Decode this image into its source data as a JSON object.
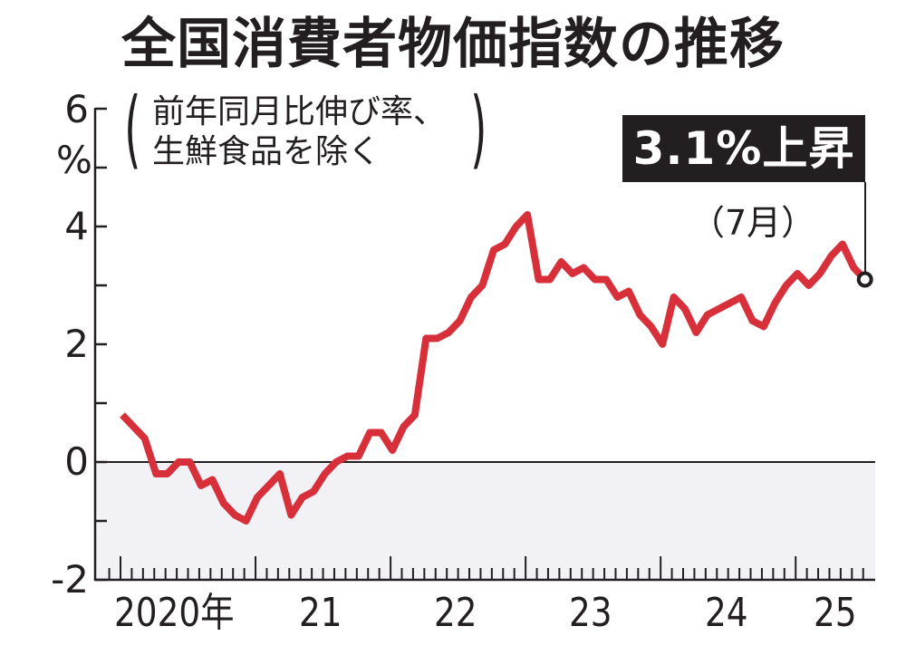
{
  "title": "全国消費者物価指数の推移",
  "subtitle": {
    "line1": "前年同月比伸び率、",
    "line2": "生鮮食品を除く"
  },
  "y_axis": {
    "unit": "%",
    "ticks": [
      "6",
      "4",
      "2",
      "0",
      "-2"
    ]
  },
  "x_axis": {
    "labels": [
      "2020年",
      "21",
      "22",
      "23",
      "24",
      "25"
    ]
  },
  "callout": {
    "value": "3.1%上昇",
    "month": "（7月）"
  },
  "colors": {
    "line": "#d7303a",
    "negative_band": "#f1f1f6",
    "callout_bg": "#231f20",
    "text": "#231f20"
  },
  "chart_data": {
    "type": "line",
    "title": "全国消費者物価指数の推移",
    "subtitle": "前年同月比伸び率、生鮮食品を除く",
    "xlabel": "",
    "ylabel": "%",
    "ylim": [
      -2,
      6
    ],
    "yticks": [
      -2,
      -1,
      0,
      1,
      2,
      3,
      4,
      5,
      6
    ],
    "x_tick_labels": [
      "2020年",
      "21",
      "22",
      "23",
      "24",
      "25"
    ],
    "grid": false,
    "legend": null,
    "annotation": "3.1%上昇（7月）",
    "x": [
      "2020-01",
      "2020-02",
      "2020-03",
      "2020-04",
      "2020-05",
      "2020-06",
      "2020-07",
      "2020-08",
      "2020-09",
      "2020-10",
      "2020-11",
      "2020-12",
      "2021-01",
      "2021-02",
      "2021-03",
      "2021-04",
      "2021-05",
      "2021-06",
      "2021-07",
      "2021-08",
      "2021-09",
      "2021-10",
      "2021-11",
      "2021-12",
      "2022-01",
      "2022-02",
      "2022-03",
      "2022-04",
      "2022-05",
      "2022-06",
      "2022-07",
      "2022-08",
      "2022-09",
      "2022-10",
      "2022-11",
      "2022-12",
      "2023-01",
      "2023-02",
      "2023-03",
      "2023-04",
      "2023-05",
      "2023-06",
      "2023-07",
      "2023-08",
      "2023-09",
      "2023-10",
      "2023-11",
      "2023-12",
      "2024-01",
      "2024-02",
      "2024-03",
      "2024-04",
      "2024-05",
      "2024-06",
      "2024-07",
      "2024-08",
      "2024-09",
      "2024-10",
      "2024-11",
      "2024-12",
      "2025-01",
      "2025-02",
      "2025-03",
      "2025-04",
      "2025-05",
      "2025-06",
      "2025-07"
    ],
    "series": [
      {
        "name": "全国消費者物価指数（生鮮食品を除く）前年同月比",
        "values": [
          0.8,
          0.6,
          0.4,
          -0.2,
          -0.2,
          0.0,
          0.0,
          -0.4,
          -0.3,
          -0.7,
          -0.9,
          -1.0,
          -0.6,
          -0.4,
          -0.2,
          -0.9,
          -0.6,
          -0.5,
          -0.2,
          0.0,
          0.1,
          0.1,
          0.5,
          0.5,
          0.2,
          0.6,
          0.8,
          2.1,
          2.1,
          2.2,
          2.4,
          2.8,
          3.0,
          3.6,
          3.7,
          4.0,
          4.2,
          3.1,
          3.1,
          3.4,
          3.2,
          3.3,
          3.1,
          3.1,
          2.8,
          2.9,
          2.5,
          2.3,
          2.0,
          2.8,
          2.6,
          2.2,
          2.5,
          2.6,
          2.7,
          2.8,
          2.4,
          2.3,
          2.7,
          3.0,
          3.2,
          3.0,
          3.2,
          3.5,
          3.7,
          3.3,
          3.1
        ]
      }
    ]
  }
}
